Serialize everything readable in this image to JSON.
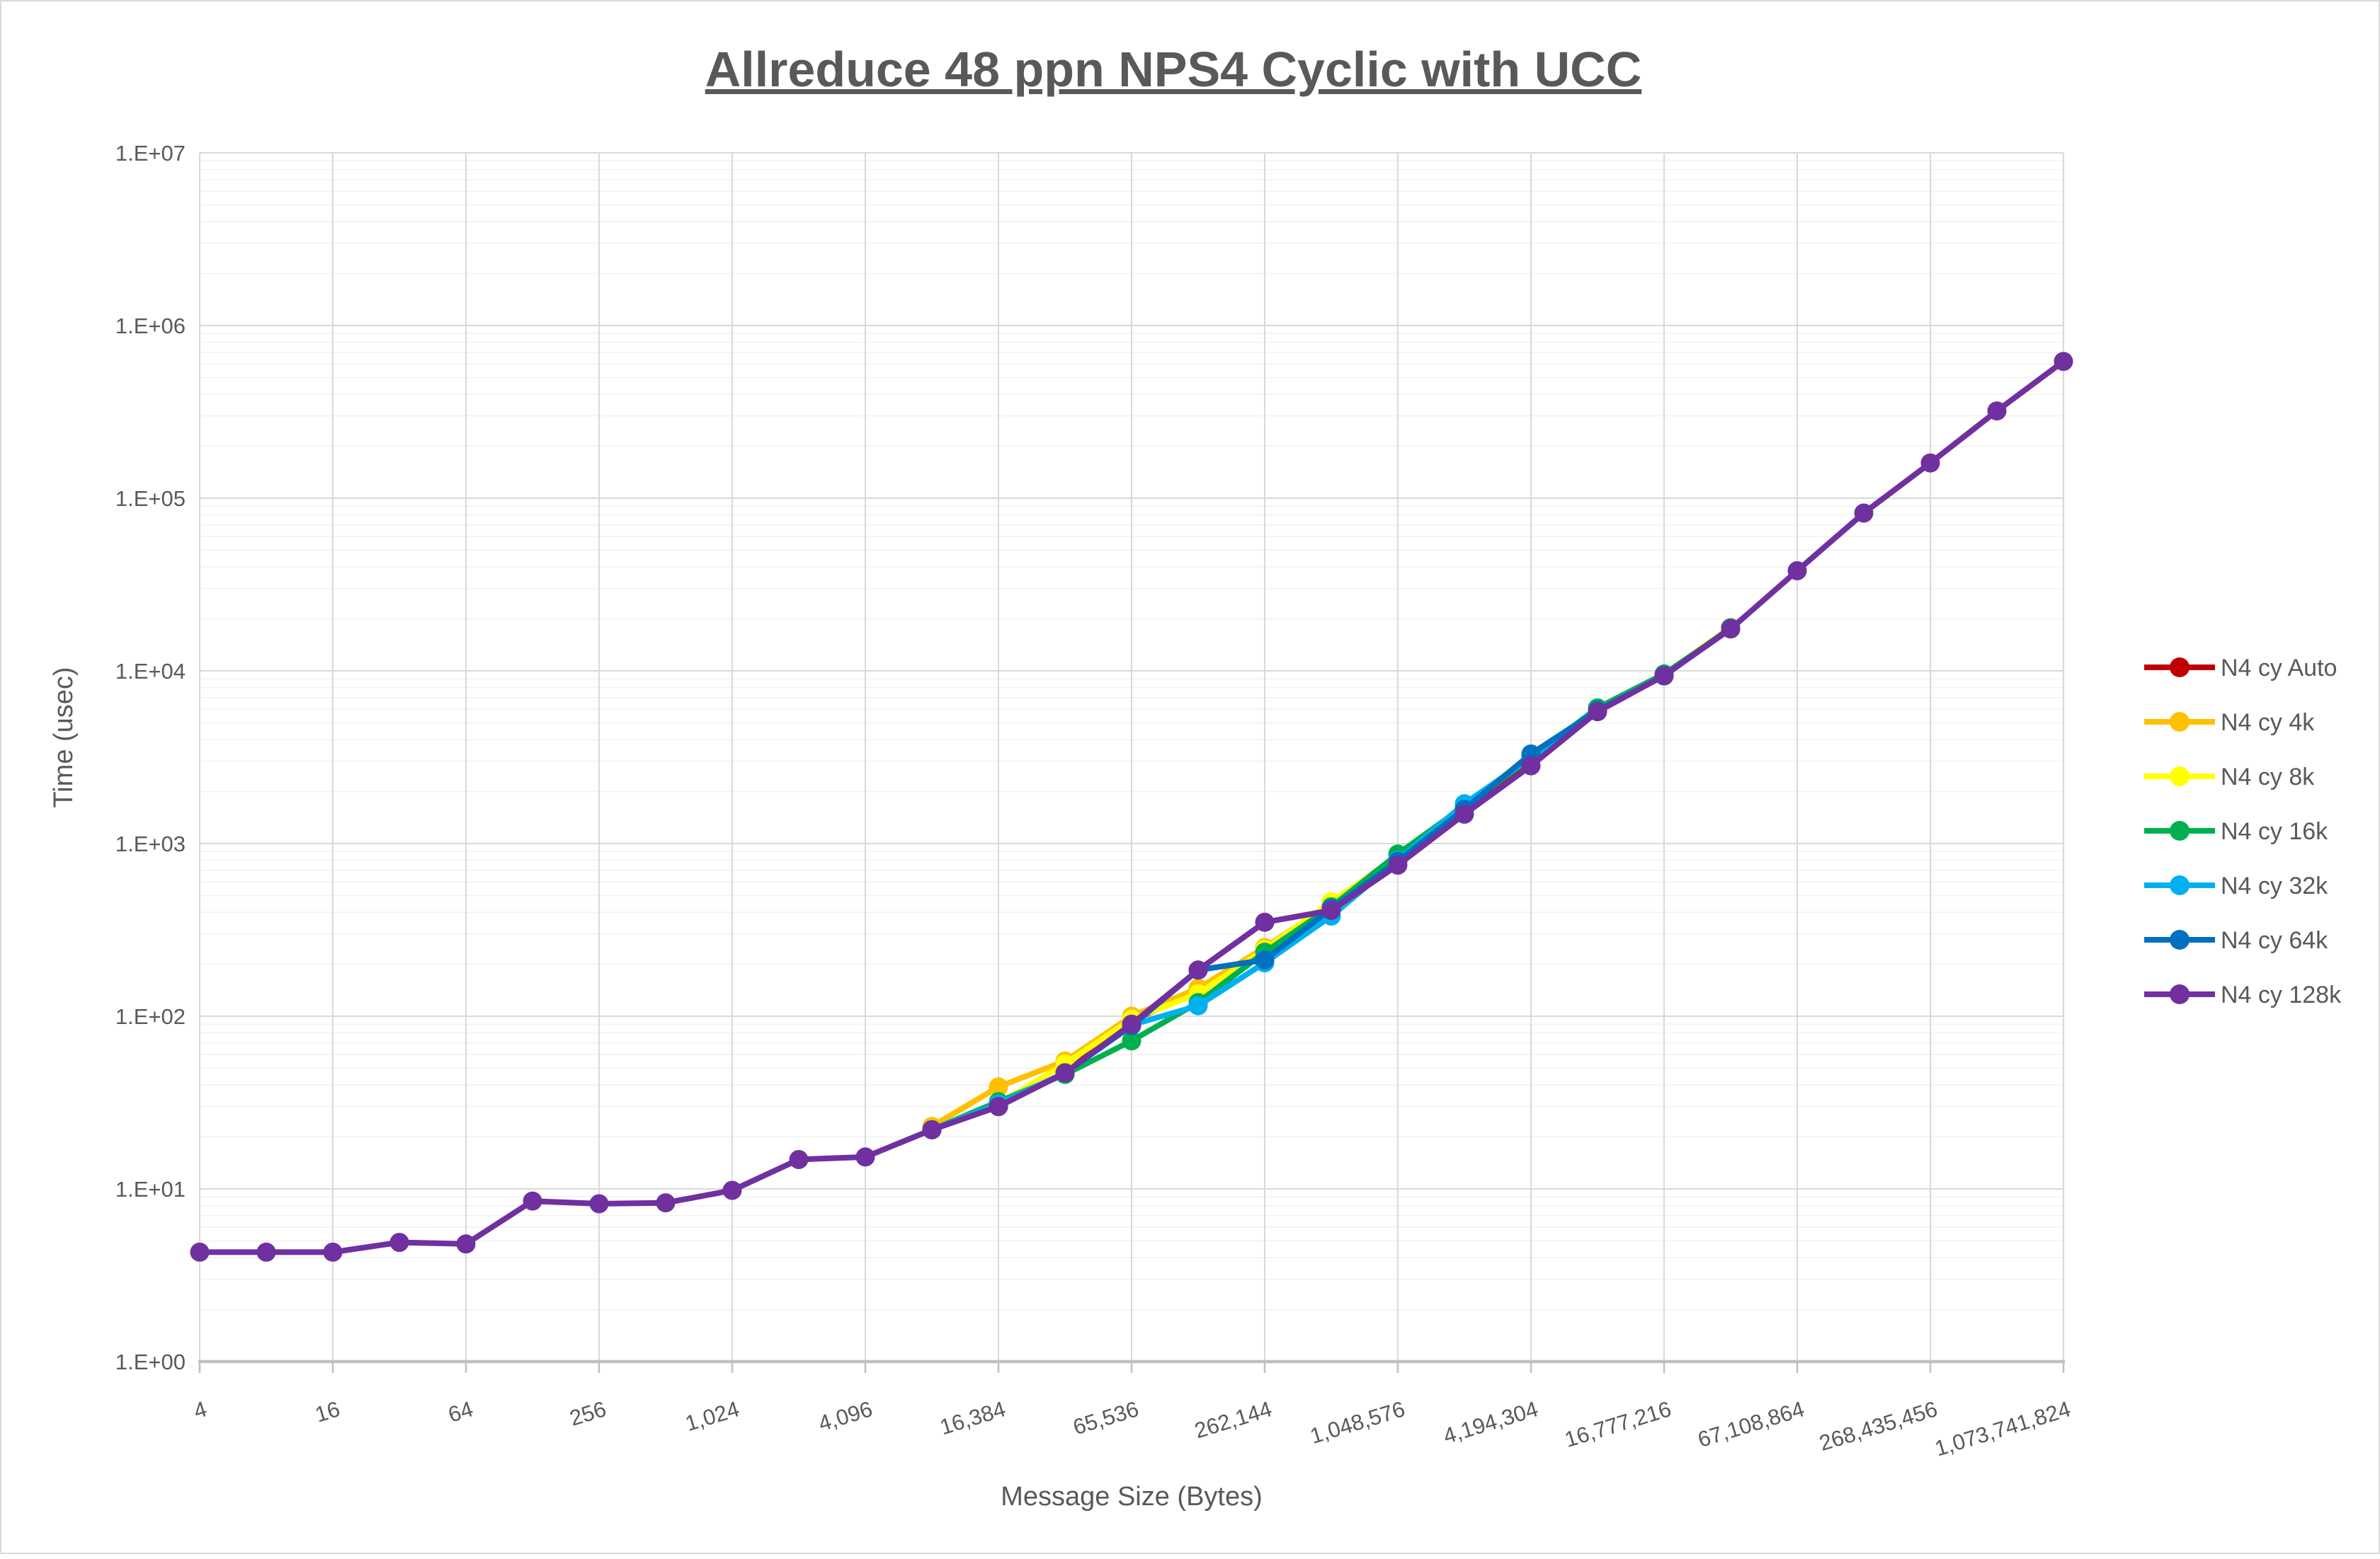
{
  "chart_data": {
    "type": "line",
    "title": "Allreduce 48 ppn NPS4 Cyclic with UCC",
    "xlabel": "Message Size (Bytes)",
    "ylabel": "Time (usec)",
    "x_scale": "log2",
    "y_scale": "log10",
    "xlim": [
      4,
      1073741824
    ],
    "ylim": [
      1,
      10000000
    ],
    "grid": "on",
    "legend_position": "right",
    "colors": {
      "text": "#595959",
      "major_grid": "#d9d9d9",
      "minor_grid": "#f1f1f1",
      "axis_line": "#bfbfbf"
    },
    "x_ticks_bytes": [
      4,
      16,
      64,
      256,
      1024,
      4096,
      16384,
      65536,
      262144,
      1048576,
      4194304,
      16777216,
      67108864,
      268435456,
      1073741824
    ],
    "x_tick_labels": [
      "4",
      "16",
      "64",
      "256",
      "1,024",
      "4,096",
      "16,384",
      "65,536",
      "262,144",
      "1,048,576",
      "4,194,304",
      "16,777,216",
      "67,108,864",
      "268,435,456",
      "1,073,741,824"
    ],
    "y_tick_labels": [
      "1.E+00",
      "1.E+01",
      "1.E+02",
      "1.E+03",
      "1.E+04",
      "1.E+05",
      "1.E+06",
      "1.E+07"
    ],
    "series": [
      {
        "name": "N4 cy Auto",
        "color": "#C00000",
        "points": [
          [
            8192,
            22
          ],
          [
            16384,
            30
          ],
          [
            32768,
            47
          ],
          [
            65536,
            94
          ],
          [
            131072,
            140
          ],
          [
            262144,
            238
          ],
          [
            524288,
            445
          ],
          [
            1048576,
            855
          ],
          [
            2097152,
            1620
          ],
          [
            4194304,
            3080
          ],
          [
            8388608,
            5950
          ],
          [
            16777216,
            9480
          ],
          [
            33554432,
            17550
          ]
        ]
      },
      {
        "name": "N4 cy 4k",
        "color": "#FFC000",
        "points": [
          [
            8192,
            23
          ],
          [
            16384,
            39
          ],
          [
            32768,
            55
          ],
          [
            65536,
            100
          ],
          [
            131072,
            145
          ],
          [
            262144,
            250
          ],
          [
            524288,
            450
          ],
          [
            1048576,
            845
          ],
          [
            2097152,
            1640
          ],
          [
            4194304,
            3250
          ],
          [
            8388608,
            5920
          ],
          [
            16777216,
            9520
          ],
          [
            33554432,
            17600
          ]
        ]
      },
      {
        "name": "N4 cy 8k",
        "color": "#FFFF00",
        "points": [
          [
            8192,
            22
          ],
          [
            16384,
            31
          ],
          [
            32768,
            53
          ],
          [
            65536,
            96
          ],
          [
            131072,
            135
          ],
          [
            262144,
            243
          ],
          [
            524288,
            460
          ],
          [
            1048576,
            835
          ],
          [
            2097152,
            1630
          ],
          [
            4194304,
            3150
          ],
          [
            8388608,
            6000
          ],
          [
            16777216,
            9550
          ],
          [
            33554432,
            17900
          ]
        ]
      },
      {
        "name": "N4 cy 16k",
        "color": "#00B050",
        "points": [
          [
            8192,
            22
          ],
          [
            16384,
            32
          ],
          [
            32768,
            46
          ],
          [
            65536,
            72
          ],
          [
            131072,
            120
          ],
          [
            262144,
            235
          ],
          [
            524288,
            430
          ],
          [
            1048576,
            870
          ],
          [
            2097152,
            1650
          ],
          [
            4194304,
            3120
          ],
          [
            8388608,
            6100
          ],
          [
            16777216,
            9600
          ],
          [
            33554432,
            17500
          ]
        ]
      },
      {
        "name": "N4 cy 32k",
        "color": "#00B0F0",
        "points": [
          [
            8192,
            22
          ],
          [
            16384,
            31
          ],
          [
            32768,
            47
          ],
          [
            65536,
            89
          ],
          [
            131072,
            115
          ],
          [
            262144,
            204
          ],
          [
            524288,
            380
          ],
          [
            1048576,
            800
          ],
          [
            2097152,
            1700
          ],
          [
            4194304,
            3150
          ],
          [
            8388608,
            5900
          ],
          [
            16777216,
            9400
          ],
          [
            33554432,
            17650
          ]
        ]
      },
      {
        "name": "N4 cy 64k",
        "color": "#0070C0",
        "points": [
          [
            8192,
            22
          ],
          [
            16384,
            30
          ],
          [
            32768,
            47
          ],
          [
            65536,
            88
          ],
          [
            131072,
            185
          ],
          [
            262144,
            212
          ],
          [
            524288,
            420
          ],
          [
            1048576,
            790
          ],
          [
            2097152,
            1580
          ],
          [
            4194304,
            3300
          ],
          [
            8388608,
            5900
          ],
          [
            16777216,
            9350
          ],
          [
            33554432,
            17750
          ]
        ]
      },
      {
        "name": "N4 cy 128k",
        "color": "#7030A0",
        "points": [
          [
            4,
            4.3
          ],
          [
            8,
            4.3
          ],
          [
            16,
            4.3
          ],
          [
            32,
            4.9
          ],
          [
            64,
            4.8
          ],
          [
            128,
            8.5
          ],
          [
            256,
            8.2
          ],
          [
            512,
            8.3
          ],
          [
            1024,
            9.8
          ],
          [
            2048,
            14.8
          ],
          [
            4096,
            15.3
          ],
          [
            8192,
            22
          ],
          [
            16384,
            30
          ],
          [
            32768,
            47
          ],
          [
            65536,
            90
          ],
          [
            131072,
            185
          ],
          [
            262144,
            350
          ],
          [
            524288,
            410
          ],
          [
            1048576,
            750
          ],
          [
            2097152,
            1480
          ],
          [
            4194304,
            2820
          ],
          [
            8388608,
            5800
          ],
          [
            16777216,
            9400
          ],
          [
            33554432,
            17500
          ],
          [
            67108864,
            38000
          ],
          [
            134217728,
            82000
          ],
          [
            268435456,
            160000
          ],
          [
            536870912,
            320000
          ],
          [
            1073741824,
            620000
          ]
        ]
      }
    ]
  }
}
